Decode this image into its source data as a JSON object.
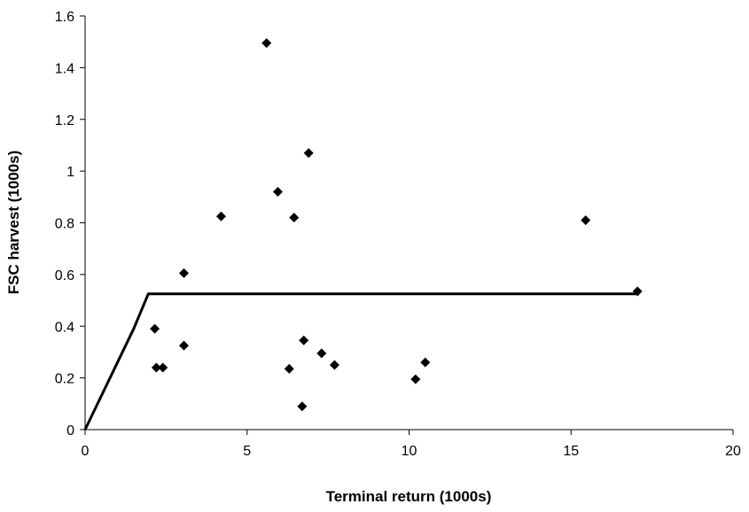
{
  "chart_data": {
    "type": "scatter",
    "title": "",
    "xlabel": "Terminal return (1000s)",
    "ylabel": "FSC harvest (1000s)",
    "xlim": [
      0,
      20
    ],
    "ylim": [
      0,
      1.6
    ],
    "x_ticks": [
      0,
      5,
      10,
      15,
      20
    ],
    "y_ticks": [
      0,
      0.2,
      0.4,
      0.6,
      0.8,
      1,
      1.2,
      1.4,
      1.6
    ],
    "grid": false,
    "legend": "none",
    "marker": "diamond",
    "color": "#000000",
    "points": [
      {
        "x": 2.15,
        "y": 0.39
      },
      {
        "x": 2.2,
        "y": 0.24
      },
      {
        "x": 2.4,
        "y": 0.24
      },
      {
        "x": 3.05,
        "y": 0.605
      },
      {
        "x": 3.05,
        "y": 0.325
      },
      {
        "x": 4.2,
        "y": 0.825
      },
      {
        "x": 5.6,
        "y": 1.495
      },
      {
        "x": 5.95,
        "y": 0.92
      },
      {
        "x": 6.3,
        "y": 0.235
      },
      {
        "x": 6.45,
        "y": 0.82
      },
      {
        "x": 6.7,
        "y": 0.09
      },
      {
        "x": 6.75,
        "y": 0.345
      },
      {
        "x": 6.9,
        "y": 1.07
      },
      {
        "x": 7.3,
        "y": 0.295
      },
      {
        "x": 7.7,
        "y": 0.25
      },
      {
        "x": 10.2,
        "y": 0.195
      },
      {
        "x": 10.5,
        "y": 0.26
      },
      {
        "x": 15.45,
        "y": 0.81
      },
      {
        "x": 17.05,
        "y": 0.535
      }
    ],
    "line": {
      "color": "#000000",
      "points": [
        {
          "x": 0,
          "y": 0
        },
        {
          "x": 1.5,
          "y": 0.39
        },
        {
          "x": 1.95,
          "y": 0.525
        },
        {
          "x": 17.05,
          "y": 0.525
        }
      ]
    }
  }
}
